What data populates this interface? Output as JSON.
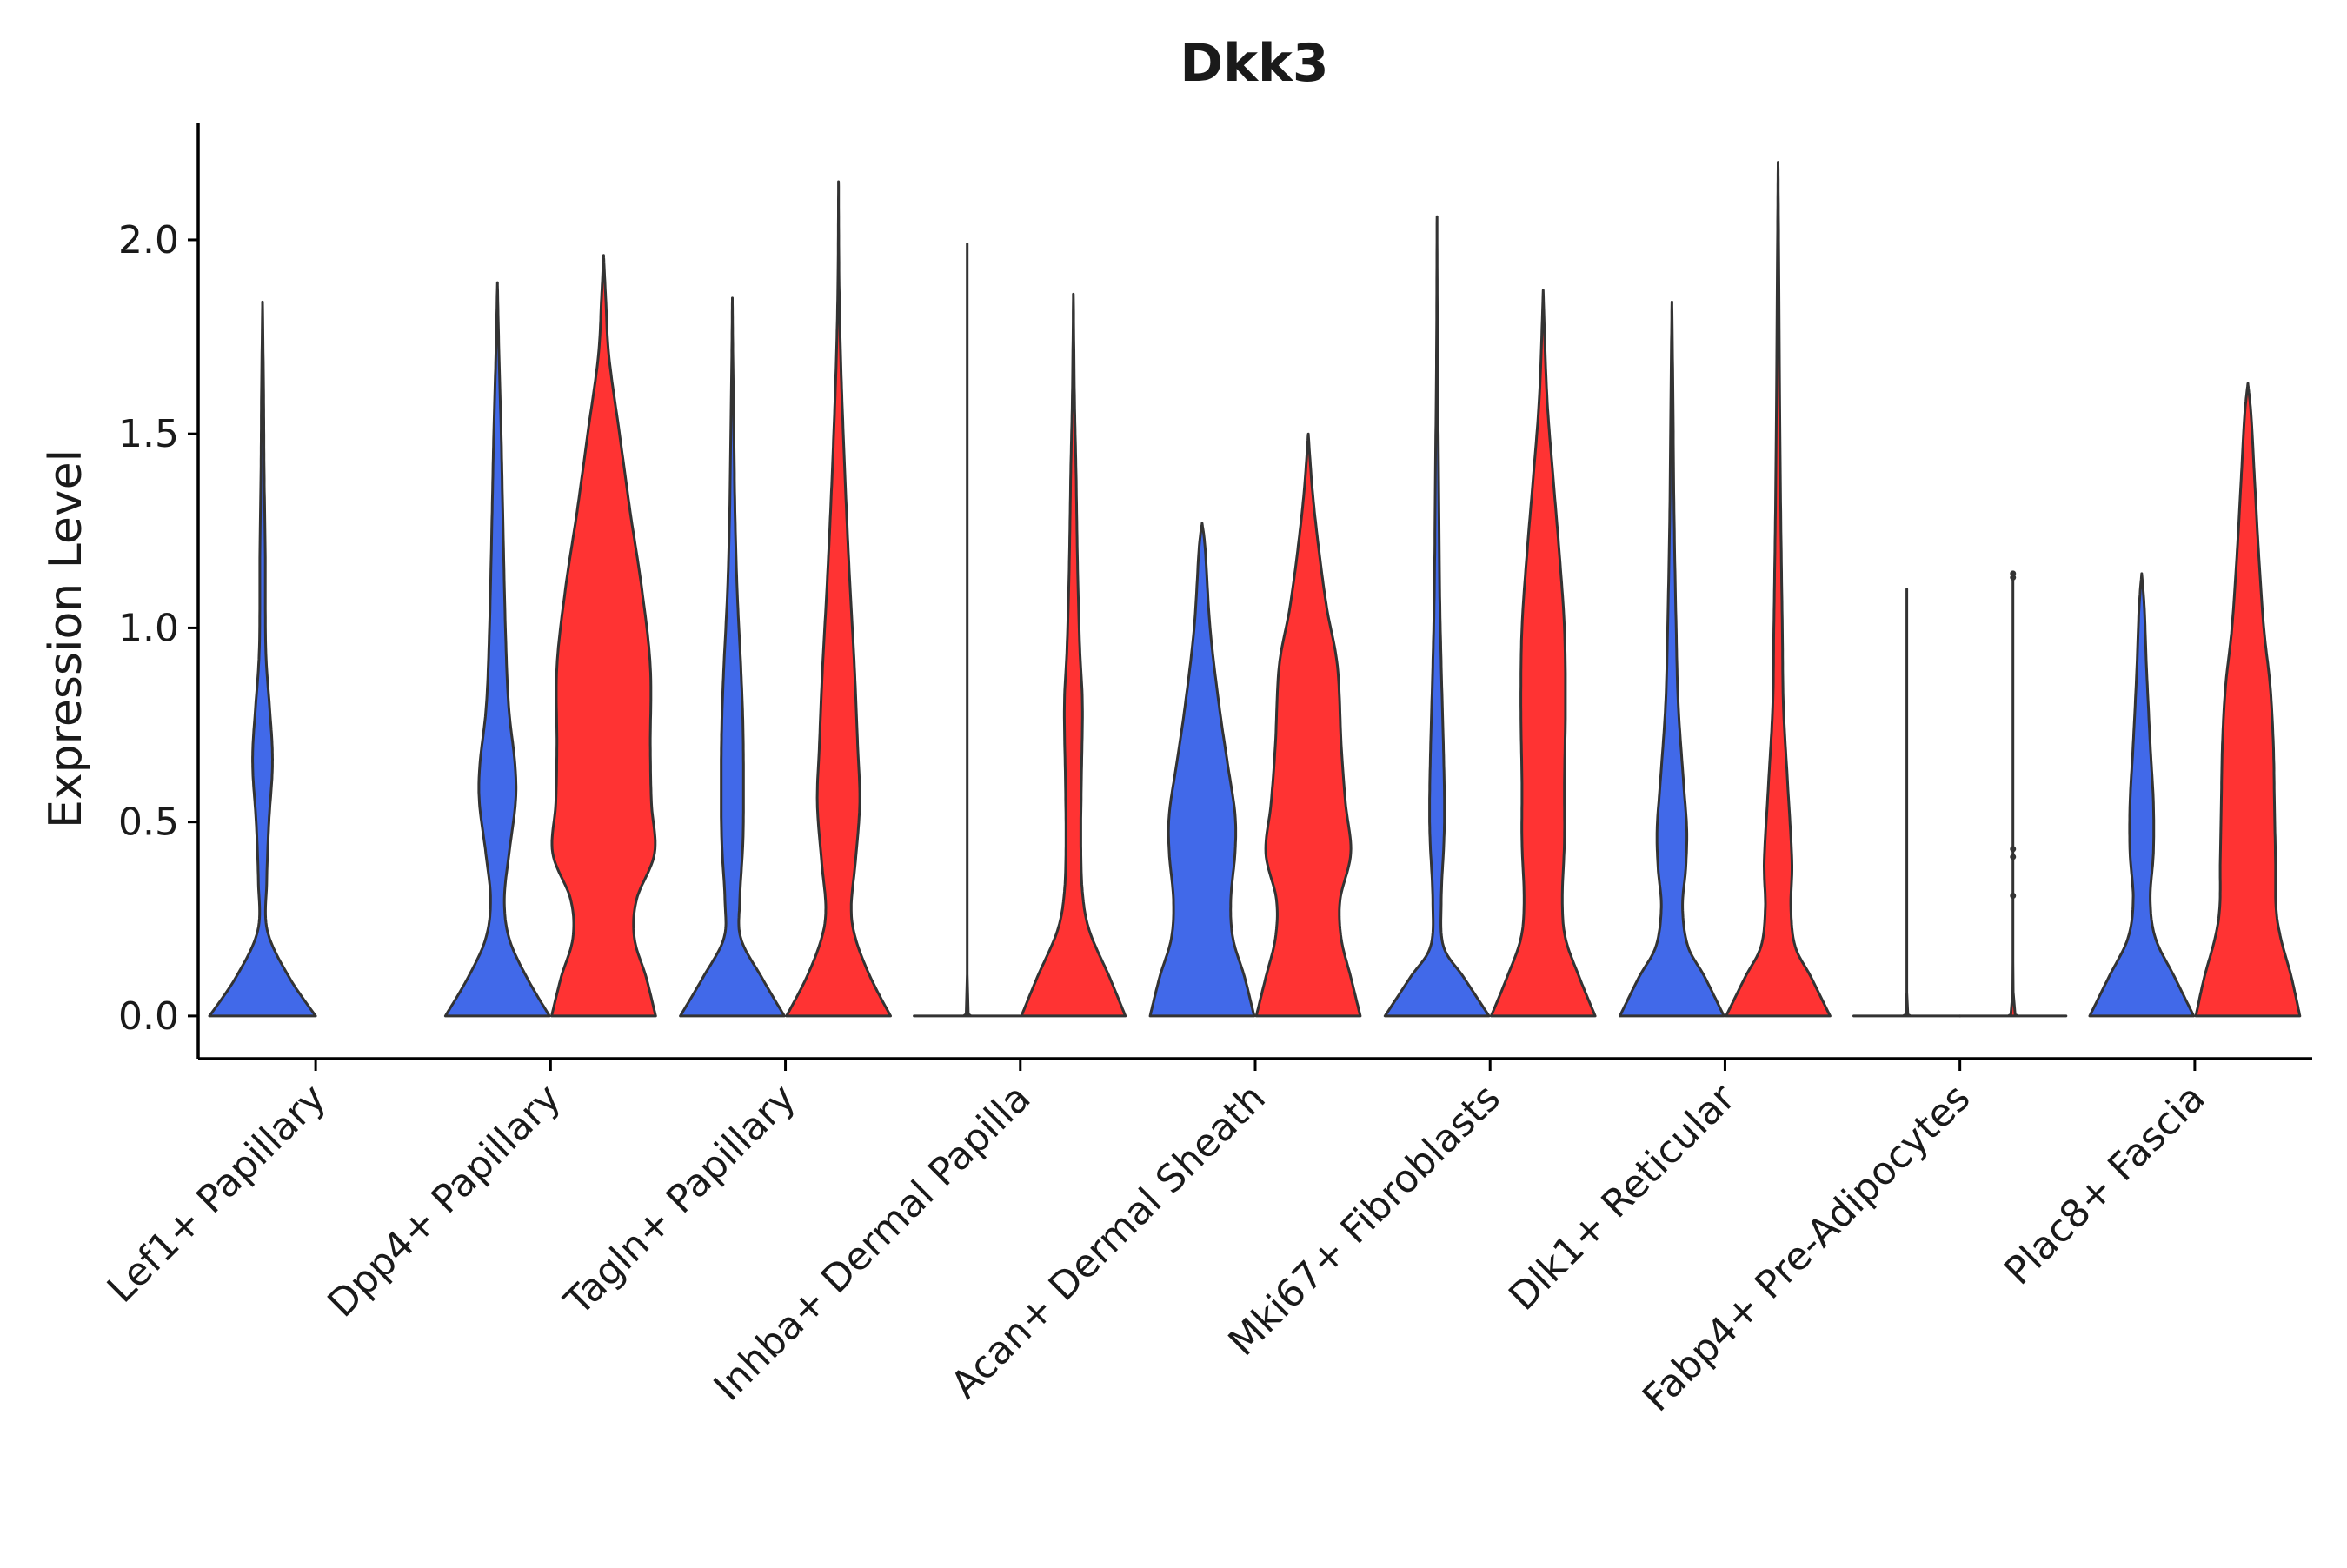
{
  "chart_data": {
    "type": "violin",
    "title": "Dkk3",
    "xlabel": "",
    "ylabel": "Expression Level",
    "ylim": [
      -0.11,
      2.3
    ],
    "yticks": [
      0.0,
      0.5,
      1.0,
      1.5,
      2.0
    ],
    "ytick_labels": [
      "0.0",
      "0.5",
      "1.0",
      "1.5",
      "2.0"
    ],
    "grid": false,
    "legend": "none",
    "series_colors": {
      "blue": "#4169E9",
      "red": "#FF3333"
    },
    "outline_color": "#333333",
    "categories": [
      "Lef1+ Papillary",
      "Dpp4+ Papillary",
      "Tagln+ Papillary",
      "Inhba+ Dermal Papilla",
      "Acan+ Dermal Sheath",
      "Mki67+ Fibroblasts",
      "Dlk1+ Reticular",
      "Fabp4+ Pre-Adipocytes",
      "Plac8+ Fascia"
    ],
    "violins": [
      {
        "category_index": 0,
        "group": "blue",
        "ymax": 1.84,
        "profile": [
          [
            0,
            1.0
          ],
          [
            0.1,
            0.5
          ],
          [
            0.22,
            0.09
          ],
          [
            0.35,
            0.08
          ],
          [
            0.5,
            0.12
          ],
          [
            0.62,
            0.18
          ],
          [
            0.7,
            0.18
          ],
          [
            0.8,
            0.13
          ],
          [
            0.95,
            0.06
          ],
          [
            1.2,
            0.05
          ],
          [
            1.4,
            0.03
          ],
          [
            1.6,
            0.02
          ],
          [
            1.84,
            0.0
          ]
        ]
      },
      {
        "category_index": 1,
        "group": "blue",
        "ymax": 1.89,
        "profile": [
          [
            0,
            0.98
          ],
          [
            0.1,
            0.55
          ],
          [
            0.2,
            0.22
          ],
          [
            0.3,
            0.13
          ],
          [
            0.42,
            0.22
          ],
          [
            0.55,
            0.34
          ],
          [
            0.65,
            0.33
          ],
          [
            0.8,
            0.21
          ],
          [
            1.0,
            0.15
          ],
          [
            1.3,
            0.1
          ],
          [
            1.5,
            0.07
          ],
          [
            1.7,
            0.03
          ],
          [
            1.89,
            0.0
          ]
        ]
      },
      {
        "category_index": 1,
        "group": "red",
        "ymax": 1.96,
        "profile": [
          [
            0,
            0.98
          ],
          [
            0.1,
            0.8
          ],
          [
            0.2,
            0.58
          ],
          [
            0.3,
            0.62
          ],
          [
            0.42,
            0.96
          ],
          [
            0.55,
            0.9
          ],
          [
            0.7,
            0.88
          ],
          [
            0.9,
            0.88
          ],
          [
            1.1,
            0.72
          ],
          [
            1.3,
            0.5
          ],
          [
            1.5,
            0.3
          ],
          [
            1.7,
            0.1
          ],
          [
            1.85,
            0.04
          ],
          [
            1.96,
            0.0
          ]
        ]
      },
      {
        "category_index": 2,
        "group": "blue",
        "ymax": 1.85,
        "profile": [
          [
            0,
            0.98
          ],
          [
            0.1,
            0.55
          ],
          [
            0.2,
            0.16
          ],
          [
            0.3,
            0.14
          ],
          [
            0.45,
            0.2
          ],
          [
            0.6,
            0.21
          ],
          [
            0.75,
            0.2
          ],
          [
            0.9,
            0.16
          ],
          [
            1.1,
            0.09
          ],
          [
            1.3,
            0.05
          ],
          [
            1.5,
            0.03
          ],
          [
            1.7,
            0.01
          ],
          [
            1.85,
            0.0
          ]
        ]
      },
      {
        "category_index": 2,
        "group": "red",
        "ymax": 2.15,
        "profile": [
          [
            0,
            0.98
          ],
          [
            0.1,
            0.6
          ],
          [
            0.2,
            0.32
          ],
          [
            0.28,
            0.24
          ],
          [
            0.4,
            0.32
          ],
          [
            0.55,
            0.4
          ],
          [
            0.7,
            0.36
          ],
          [
            0.9,
            0.3
          ],
          [
            1.1,
            0.22
          ],
          [
            1.3,
            0.15
          ],
          [
            1.5,
            0.09
          ],
          [
            1.7,
            0.04
          ],
          [
            1.9,
            0.01
          ],
          [
            2.15,
            0.0
          ]
        ]
      },
      {
        "category_index": 3,
        "group": "blue",
        "ymax": 1.99,
        "profile": [
          [
            0,
            1.0
          ],
          [
            0.005,
            0.02
          ],
          [
            1.99,
            0.0
          ]
        ]
      },
      {
        "category_index": 3,
        "group": "red",
        "ymax": 1.86,
        "profile": [
          [
            0,
            0.98
          ],
          [
            0.1,
            0.68
          ],
          [
            0.22,
            0.3
          ],
          [
            0.32,
            0.17
          ],
          [
            0.45,
            0.14
          ],
          [
            0.6,
            0.15
          ],
          [
            0.8,
            0.17
          ],
          [
            0.95,
            0.12
          ],
          [
            1.15,
            0.08
          ],
          [
            1.4,
            0.05
          ],
          [
            1.6,
            0.02
          ],
          [
            1.86,
            0.0
          ]
        ]
      },
      {
        "category_index": 4,
        "group": "blue",
        "ymax": 1.27,
        "profile": [
          [
            0,
            0.98
          ],
          [
            0.1,
            0.8
          ],
          [
            0.2,
            0.58
          ],
          [
            0.3,
            0.54
          ],
          [
            0.42,
            0.62
          ],
          [
            0.52,
            0.62
          ],
          [
            0.65,
            0.48
          ],
          [
            0.8,
            0.32
          ],
          [
            1.0,
            0.15
          ],
          [
            1.2,
            0.06
          ],
          [
            1.27,
            0.0
          ]
        ]
      },
      {
        "category_index": 4,
        "group": "red",
        "ymax": 1.5,
        "profile": [
          [
            0,
            0.98
          ],
          [
            0.1,
            0.8
          ],
          [
            0.2,
            0.62
          ],
          [
            0.3,
            0.6
          ],
          [
            0.42,
            0.8
          ],
          [
            0.55,
            0.7
          ],
          [
            0.7,
            0.62
          ],
          [
            0.9,
            0.55
          ],
          [
            1.05,
            0.35
          ],
          [
            1.2,
            0.2
          ],
          [
            1.35,
            0.08
          ],
          [
            1.5,
            0.0
          ]
        ]
      },
      {
        "category_index": 5,
        "group": "blue",
        "ymax": 2.06,
        "profile": [
          [
            0,
            0.98
          ],
          [
            0.1,
            0.5
          ],
          [
            0.18,
            0.12
          ],
          [
            0.3,
            0.08
          ],
          [
            0.45,
            0.13
          ],
          [
            0.55,
            0.14
          ],
          [
            0.7,
            0.12
          ],
          [
            0.9,
            0.08
          ],
          [
            1.1,
            0.05
          ],
          [
            1.4,
            0.03
          ],
          [
            1.7,
            0.01
          ],
          [
            2.06,
            0.0
          ]
        ]
      },
      {
        "category_index": 5,
        "group": "red",
        "ymax": 1.87,
        "profile": [
          [
            0,
            0.98
          ],
          [
            0.1,
            0.68
          ],
          [
            0.2,
            0.42
          ],
          [
            0.3,
            0.36
          ],
          [
            0.45,
            0.4
          ],
          [
            0.6,
            0.4
          ],
          [
            0.8,
            0.42
          ],
          [
            1.0,
            0.4
          ],
          [
            1.2,
            0.3
          ],
          [
            1.4,
            0.18
          ],
          [
            1.6,
            0.07
          ],
          [
            1.87,
            0.0
          ]
        ]
      },
      {
        "category_index": 6,
        "group": "blue",
        "ymax": 1.84,
        "profile": [
          [
            0,
            0.98
          ],
          [
            0.1,
            0.62
          ],
          [
            0.18,
            0.3
          ],
          [
            0.28,
            0.2
          ],
          [
            0.38,
            0.26
          ],
          [
            0.48,
            0.28
          ],
          [
            0.6,
            0.22
          ],
          [
            0.8,
            0.12
          ],
          [
            1.0,
            0.08
          ],
          [
            1.3,
            0.04
          ],
          [
            1.6,
            0.02
          ],
          [
            1.84,
            0.0
          ]
        ]
      },
      {
        "category_index": 6,
        "group": "red",
        "ymax": 2.2,
        "profile": [
          [
            0,
            0.98
          ],
          [
            0.1,
            0.62
          ],
          [
            0.18,
            0.32
          ],
          [
            0.28,
            0.24
          ],
          [
            0.4,
            0.26
          ],
          [
            0.6,
            0.18
          ],
          [
            0.8,
            0.1
          ],
          [
            1.0,
            0.08
          ],
          [
            1.3,
            0.05
          ],
          [
            1.6,
            0.03
          ],
          [
            2.0,
            0.01
          ],
          [
            2.2,
            0.0
          ]
        ]
      },
      {
        "category_index": 7,
        "group": "blue",
        "ymax": 1.1,
        "profile": [
          [
            0,
            1.0
          ],
          [
            0.004,
            0.02
          ],
          [
            1.1,
            0.0
          ]
        ]
      },
      {
        "category_index": 7,
        "group": "red",
        "ymax": 1.13,
        "profile": [
          [
            0,
            1.0
          ],
          [
            0.004,
            0.04
          ],
          [
            1.13,
            0.0
          ]
        ]
      },
      {
        "category_index": 8,
        "group": "blue",
        "ymax": 1.14,
        "profile": [
          [
            0,
            0.98
          ],
          [
            0.1,
            0.62
          ],
          [
            0.2,
            0.26
          ],
          [
            0.3,
            0.16
          ],
          [
            0.42,
            0.22
          ],
          [
            0.55,
            0.22
          ],
          [
            0.7,
            0.16
          ],
          [
            0.9,
            0.09
          ],
          [
            1.05,
            0.05
          ],
          [
            1.14,
            0.0
          ]
        ]
      },
      {
        "category_index": 8,
        "group": "red",
        "ymax": 1.63,
        "profile": [
          [
            0,
            0.98
          ],
          [
            0.1,
            0.82
          ],
          [
            0.2,
            0.62
          ],
          [
            0.28,
            0.53
          ],
          [
            0.4,
            0.52
          ],
          [
            0.55,
            0.5
          ],
          [
            0.7,
            0.48
          ],
          [
            0.85,
            0.42
          ],
          [
            1.0,
            0.3
          ],
          [
            1.2,
            0.2
          ],
          [
            1.4,
            0.12
          ],
          [
            1.55,
            0.06
          ],
          [
            1.63,
            0.0
          ]
        ]
      }
    ],
    "outlier_points": [
      {
        "category_index": 7,
        "group": "red",
        "y": 0.31
      },
      {
        "category_index": 7,
        "group": "red",
        "y": 0.41
      },
      {
        "category_index": 7,
        "group": "red",
        "y": 0.43
      },
      {
        "category_index": 7,
        "group": "red",
        "y": 1.13
      },
      {
        "category_index": 7,
        "group": "red",
        "y": 1.14
      }
    ]
  }
}
